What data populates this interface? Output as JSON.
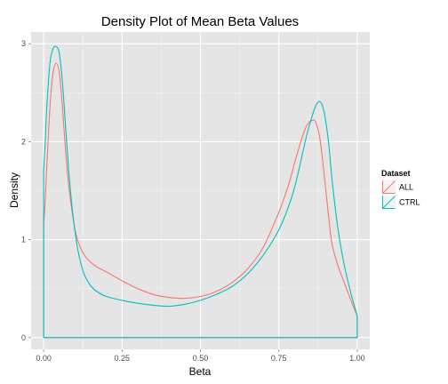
{
  "chart_data": {
    "type": "area",
    "title": "Density Plot of Mean Beta Values",
    "xlabel": "Beta",
    "ylabel": "Density",
    "xlim": [
      -0.04,
      1.04
    ],
    "ylim": [
      -0.12,
      3.12
    ],
    "x_ticks": [
      0.0,
      0.25,
      0.5,
      0.75,
      1.0
    ],
    "x_tick_labels": [
      "0.00",
      "0.25",
      "0.50",
      "0.75",
      "1.00"
    ],
    "y_ticks": [
      0,
      1,
      2,
      3
    ],
    "y_tick_labels": [
      "0",
      "1",
      "2",
      "3"
    ],
    "grid": true,
    "legend": {
      "title": "Dataset",
      "placement": "right"
    },
    "series": [
      {
        "name": "ALL",
        "color": "#F8766D",
        "x": [
          0.0,
          0.0,
          0.005,
          0.01,
          0.02,
          0.03,
          0.04,
          0.05,
          0.06,
          0.07,
          0.08,
          0.09,
          0.1,
          0.11,
          0.12,
          0.13,
          0.15,
          0.17,
          0.2,
          0.25,
          0.3,
          0.35,
          0.4,
          0.45,
          0.5,
          0.55,
          0.6,
          0.65,
          0.7,
          0.75,
          0.78,
          0.8,
          0.82,
          0.84,
          0.86,
          0.87,
          0.88,
          0.89,
          0.9,
          0.91,
          0.92,
          0.94,
          0.96,
          0.98,
          1.0,
          1.0
        ],
        "y": [
          0.0,
          1.15,
          1.4,
          1.75,
          2.35,
          2.7,
          2.8,
          2.7,
          2.35,
          1.9,
          1.55,
          1.3,
          1.1,
          0.98,
          0.9,
          0.84,
          0.77,
          0.72,
          0.67,
          0.58,
          0.5,
          0.44,
          0.41,
          0.4,
          0.42,
          0.47,
          0.56,
          0.7,
          0.92,
          1.28,
          1.55,
          1.78,
          2.0,
          2.17,
          2.22,
          2.18,
          2.05,
          1.8,
          1.5,
          1.2,
          0.95,
          0.72,
          0.55,
          0.38,
          0.22,
          0.0
        ]
      },
      {
        "name": "CTRL",
        "color": "#00BFC4",
        "x": [
          0.0,
          0.0,
          0.005,
          0.01,
          0.02,
          0.03,
          0.04,
          0.05,
          0.06,
          0.07,
          0.08,
          0.09,
          0.1,
          0.11,
          0.12,
          0.13,
          0.15,
          0.17,
          0.2,
          0.25,
          0.3,
          0.35,
          0.4,
          0.45,
          0.5,
          0.55,
          0.6,
          0.65,
          0.7,
          0.75,
          0.78,
          0.8,
          0.82,
          0.84,
          0.86,
          0.87,
          0.88,
          0.89,
          0.9,
          0.91,
          0.92,
          0.94,
          0.96,
          0.98,
          1.0,
          1.0
        ],
        "y": [
          0.0,
          1.7,
          2.0,
          2.35,
          2.8,
          2.95,
          2.97,
          2.9,
          2.6,
          2.15,
          1.7,
          1.35,
          1.08,
          0.88,
          0.74,
          0.64,
          0.53,
          0.47,
          0.42,
          0.38,
          0.35,
          0.33,
          0.32,
          0.34,
          0.38,
          0.44,
          0.52,
          0.65,
          0.84,
          1.1,
          1.33,
          1.53,
          1.8,
          2.08,
          2.3,
          2.38,
          2.41,
          2.36,
          2.2,
          1.95,
          1.6,
          1.08,
          0.72,
          0.45,
          0.22,
          0.0
        ]
      }
    ]
  }
}
